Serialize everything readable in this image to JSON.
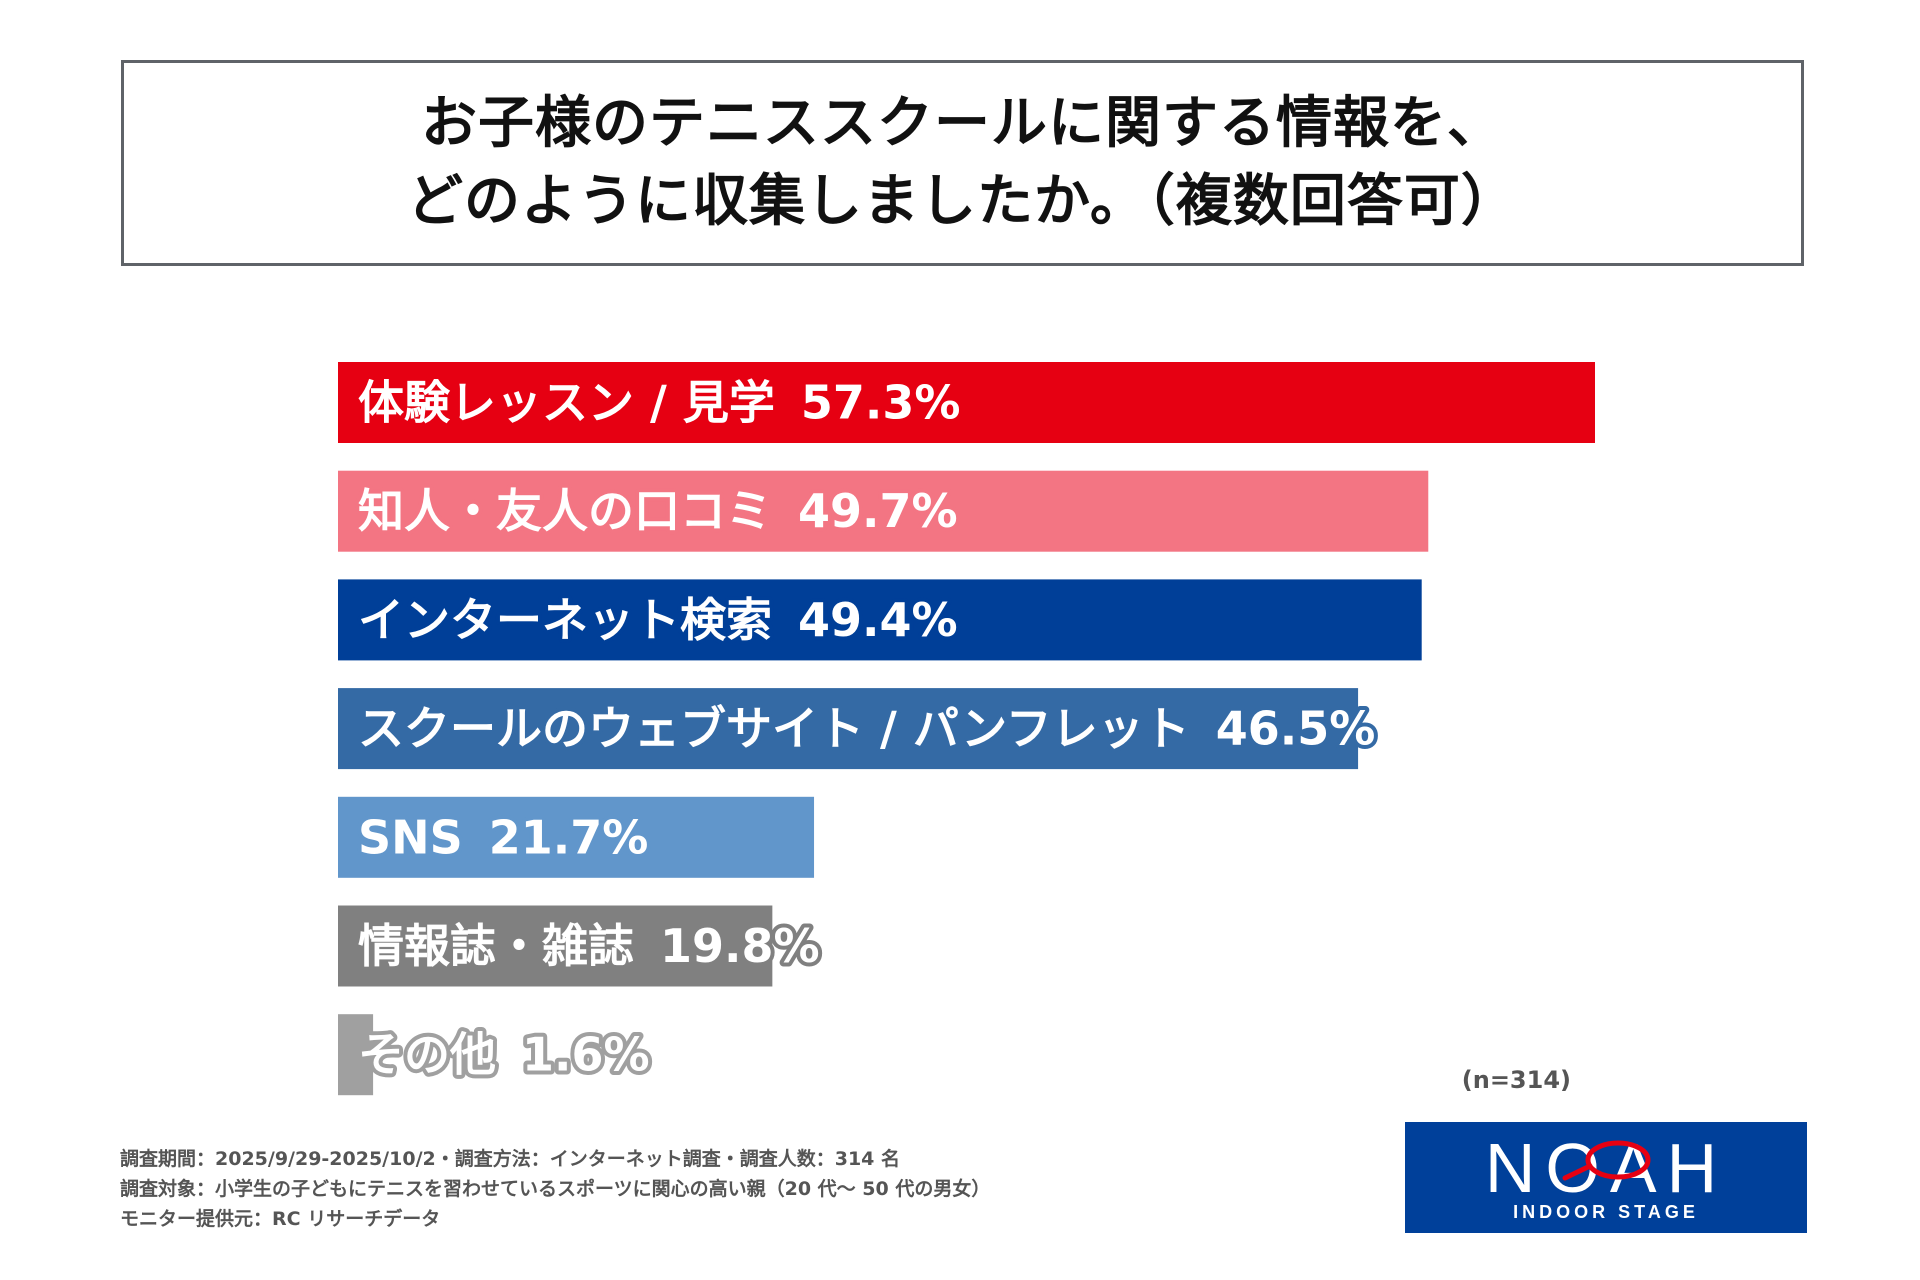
{
  "title": {
    "line1": "お子様のテニススクールに関する情報を、",
    "line2": "どのように収集しましたか。（複数回答可）"
  },
  "chart_data": {
    "type": "bar",
    "orientation": "horizontal",
    "title": "お子様のテニススクールに関する情報を、どのように収集しましたか。（複数回答可）",
    "categories": [
      "体験レッスン / 見学",
      "知人・友人の口コミ",
      "インターネット検索",
      "スクールのウェブサイト / パンフレット",
      "SNS",
      "情報誌・雑誌",
      "その他"
    ],
    "values": [
      57.3,
      49.7,
      49.4,
      46.5,
      21.7,
      19.8,
      1.6
    ],
    "value_labels": [
      "57.3%",
      "49.7%",
      "49.4%",
      "46.5%",
      "21.7%",
      "19.8%",
      "1.6%"
    ],
    "colors": [
      "#e60012",
      "#f37583",
      "#003f98",
      "#346aa5",
      "#6196cb",
      "#808080",
      "#a0a0a0"
    ],
    "unit": "%",
    "xlim": [
      0,
      57.3
    ],
    "xlabel": "",
    "ylabel": ""
  },
  "sample_note": "(n=314)",
  "footer": {
    "line1": "調査期間：2025/9/29-2025/10/2・調査方法：インターネット調査・調査人数：314 名",
    "line2": "調査対象：小学生の子どもにテニスを習わせているスポーツに関心の高い親（20 代～ 50 代の男女）",
    "line3": "モニター提供元：RC リサーチデータ"
  },
  "logo": {
    "word": "NOAH",
    "sub": "INDOOR STAGE"
  }
}
